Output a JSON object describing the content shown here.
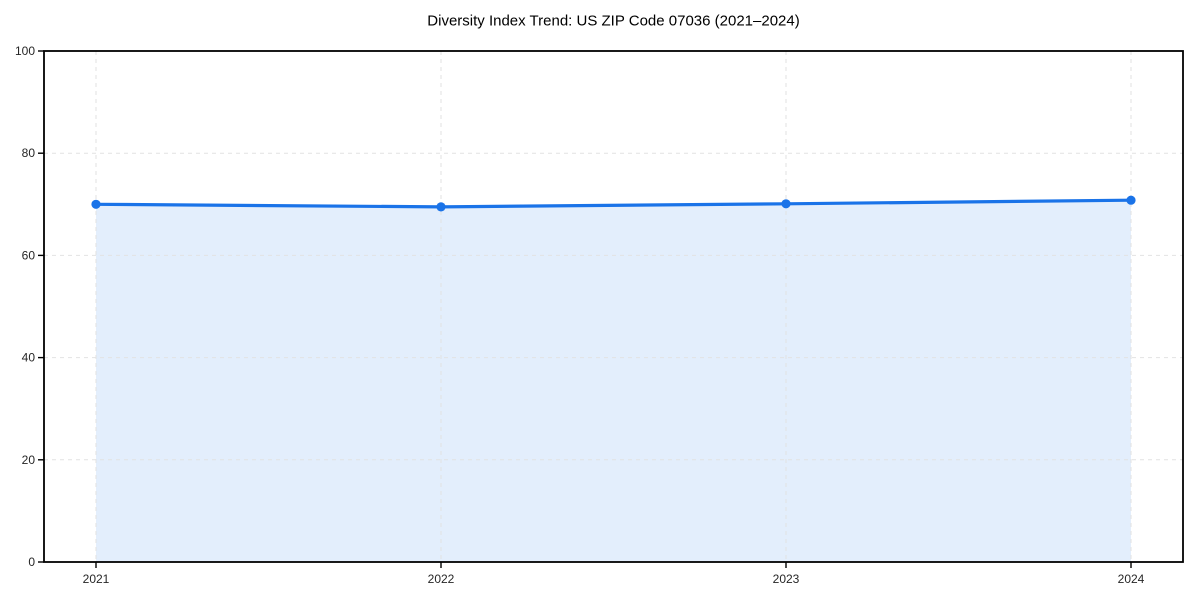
{
  "chart_data": {
    "type": "line",
    "title": "Diversity Index Trend: US ZIP Code 07036 (2021–2024)",
    "x_labels": [
      "2021",
      "2022",
      "2023",
      "2024"
    ],
    "series": [
      {
        "name": "Diversity Index",
        "values": [
          70.0,
          69.5,
          70.1,
          70.8
        ]
      }
    ],
    "ylim": [
      0,
      100
    ],
    "yticks": [
      0,
      20,
      40,
      60,
      80,
      100
    ],
    "ytick_labels": [
      "0",
      "20",
      "40",
      "60",
      "80",
      "100"
    ],
    "xlabel": "",
    "ylabel": "",
    "grid": "dashed-both-axes",
    "legend": "none",
    "area_fill": true,
    "marker": "circle",
    "colors": {
      "line": "#1a73e8",
      "marker": "#1a73e8",
      "area_fill": "rgba(26,115,232,0.12)",
      "grid": "#e2e2e2",
      "spine": "#000000",
      "tick_mark": "#000000",
      "tick_label": "#262626",
      "title": "#000000",
      "background": "#ffffff"
    }
  }
}
